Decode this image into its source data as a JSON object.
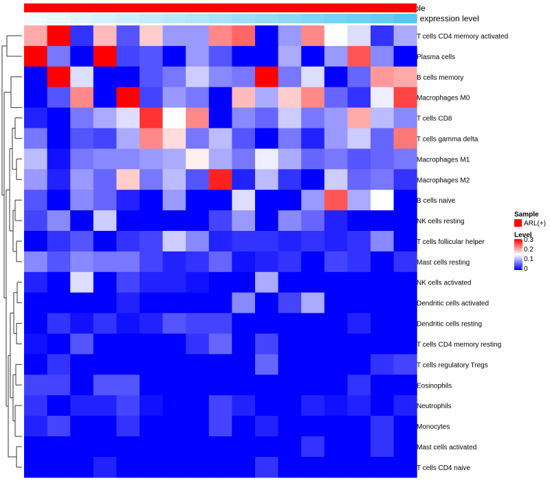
{
  "chart_data": {
    "type": "heatmap",
    "title": "",
    "annotation_tracks": [
      {
        "name": "Sample",
        "color": "#ff0000"
      },
      {
        "name": "Gene expression level",
        "color_low": "#f0fbff",
        "color_high": "#55c8f2"
      }
    ],
    "rows": [
      "T cells CD4 memory activated",
      "Plasma cells",
      "B cells memory",
      "Macrophages M0",
      "T cells CD8",
      "T cells gamma delta",
      "Macrophages M1",
      "Macrophages M2",
      "B cells naive",
      "NK cells resting",
      "T cells follicular helper",
      "Mast cells resting",
      "NK cells activated",
      "Dendritic cells activated",
      "Dendritic cells resting",
      "T cells CD4 memory resting",
      "T cells regulatory  Tregs",
      "Eosinophils",
      "Neutrophils",
      "Monocytes",
      "Mast cells activated",
      "T cells CD4 naive"
    ],
    "n_columns": 17,
    "values": [
      [
        0.2,
        0.33,
        0.03,
        0.19,
        0.05,
        0.18,
        0.09,
        0.09,
        0.22,
        0.24,
        0.0,
        0.09,
        0.22,
        0.15,
        0.13,
        0.03,
        0.1
      ],
      [
        0.33,
        0.07,
        0.0,
        0.32,
        0.04,
        0.05,
        0.0,
        0.09,
        0.05,
        0.0,
        0.0,
        0.1,
        0.0,
        0.09,
        0.25,
        0.08,
        0.0
      ],
      [
        0.0,
        0.33,
        0.13,
        0.0,
        0.0,
        0.05,
        0.07,
        0.12,
        0.08,
        0.07,
        0.33,
        0.07,
        0.13,
        0.0,
        0.06,
        0.21,
        0.2
      ],
      [
        0.0,
        0.05,
        0.22,
        0.0,
        0.32,
        0.04,
        0.09,
        0.07,
        0.0,
        0.19,
        0.1,
        0.18,
        0.22,
        0.06,
        0.03,
        0.14,
        0.26
      ],
      [
        0.02,
        0.0,
        0.07,
        0.1,
        0.13,
        0.27,
        0.15,
        0.22,
        0.0,
        0.08,
        0.06,
        0.12,
        0.07,
        0.09,
        0.2,
        0.11,
        0.08
      ],
      [
        0.07,
        0.0,
        0.05,
        0.04,
        0.1,
        0.22,
        0.17,
        0.07,
        0.11,
        0.05,
        0.0,
        0.07,
        0.02,
        0.09,
        0.12,
        0.06,
        0.23
      ],
      [
        0.11,
        0.01,
        0.07,
        0.08,
        0.08,
        0.09,
        0.1,
        0.16,
        0.1,
        0.07,
        0.14,
        0.1,
        0.06,
        0.07,
        0.05,
        0.06,
        0.07
      ],
      [
        0.09,
        0.02,
        0.09,
        0.06,
        0.18,
        0.07,
        0.11,
        0.05,
        0.28,
        0.02,
        0.11,
        0.03,
        0.0,
        0.12,
        0.06,
        0.07,
        0.03
      ],
      [
        0.05,
        0.0,
        0.08,
        0.06,
        0.02,
        0.0,
        0.09,
        0.0,
        0.0,
        0.13,
        0.0,
        0.0,
        0.09,
        0.25,
        0.1,
        0.15,
        0.0
      ],
      [
        0.04,
        0.08,
        0.0,
        0.12,
        0.0,
        0.0,
        0.0,
        0.0,
        0.04,
        0.09,
        0.0,
        0.08,
        0.06,
        0.02,
        0.0,
        0.0,
        0.0
      ],
      [
        0.0,
        0.03,
        0.05,
        0.0,
        0.03,
        0.04,
        0.12,
        0.08,
        0.02,
        0.03,
        0.03,
        0.02,
        0.03,
        0.02,
        0.03,
        0.08,
        0.0
      ],
      [
        0.08,
        0.05,
        0.08,
        0.07,
        0.07,
        0.04,
        0.02,
        0.03,
        0.06,
        0.01,
        0.02,
        0.03,
        0.0,
        0.04,
        0.03,
        0.0,
        0.03
      ],
      [
        0.02,
        0.0,
        0.13,
        0.0,
        0.04,
        0.02,
        0.02,
        0.01,
        0.0,
        0.0,
        0.1,
        0.0,
        0.0,
        0.0,
        0.0,
        0.0,
        0.0
      ],
      [
        0.0,
        0.0,
        0.0,
        0.0,
        0.02,
        0.0,
        0.0,
        0.0,
        0.0,
        0.08,
        0.0,
        0.04,
        0.1,
        0.0,
        0.0,
        0.0,
        0.0
      ],
      [
        0.0,
        0.03,
        0.01,
        0.03,
        0.01,
        0.02,
        0.05,
        0.04,
        0.04,
        0.0,
        0.0,
        0.0,
        0.0,
        0.0,
        0.02,
        0.0,
        0.0
      ],
      [
        0.01,
        0.0,
        0.05,
        0.0,
        0.0,
        0.0,
        0.0,
        0.03,
        0.06,
        0.0,
        0.04,
        0.0,
        0.0,
        0.0,
        0.0,
        0.0,
        0.0
      ],
      [
        0.0,
        0.03,
        0.0,
        0.0,
        0.0,
        0.0,
        0.0,
        0.0,
        0.0,
        0.0,
        0.06,
        0.0,
        0.0,
        0.0,
        0.0,
        0.03,
        0.04
      ],
      [
        0.04,
        0.04,
        0.0,
        0.05,
        0.05,
        0.0,
        0.0,
        0.0,
        0.0,
        0.0,
        0.0,
        0.0,
        0.0,
        0.0,
        0.03,
        0.0,
        0.0
      ],
      [
        0.03,
        0.0,
        0.02,
        0.02,
        0.04,
        0.01,
        0.0,
        0.0,
        0.04,
        0.02,
        0.0,
        0.0,
        0.02,
        0.01,
        0.02,
        0.0,
        0.02
      ],
      [
        0.02,
        0.04,
        0.0,
        0.0,
        0.03,
        0.0,
        0.0,
        0.0,
        0.04,
        0.0,
        0.02,
        0.0,
        0.0,
        0.0,
        0.0,
        0.03,
        0.0
      ],
      [
        0.0,
        0.0,
        0.0,
        0.0,
        0.0,
        0.0,
        0.0,
        0.0,
        0.0,
        0.0,
        0.0,
        0.0,
        0.03,
        0.0,
        0.0,
        0.03,
        0.0
      ],
      [
        0.0,
        0.0,
        0.0,
        0.02,
        0.0,
        0.0,
        0.0,
        0.0,
        0.0,
        0.0,
        0.03,
        0.0,
        0.0,
        0.0,
        0.0,
        0.0,
        0.0
      ]
    ],
    "gene_expression_level": [
      0.0,
      0.06,
      0.12,
      0.18,
      0.24,
      0.3,
      0.36,
      0.42,
      0.48,
      0.54,
      0.6,
      0.66,
      0.72,
      0.78,
      0.84,
      0.9,
      1.0
    ],
    "color_scale": {
      "min": 0,
      "mid": 0.15,
      "max": 0.3,
      "low": "#0000ff",
      "mid_color": "#ffffff",
      "high": "#ff0000"
    },
    "legend": {
      "sample_title": "Sample",
      "sample_label": "ARL(+)",
      "sample_color": "#ff0000",
      "level_title": "Level",
      "level_ticks": [
        "0.3",
        "0.2",
        "0.1",
        "0"
      ],
      "level_tick_values": [
        0.3,
        0.2,
        0.1,
        0
      ]
    }
  }
}
